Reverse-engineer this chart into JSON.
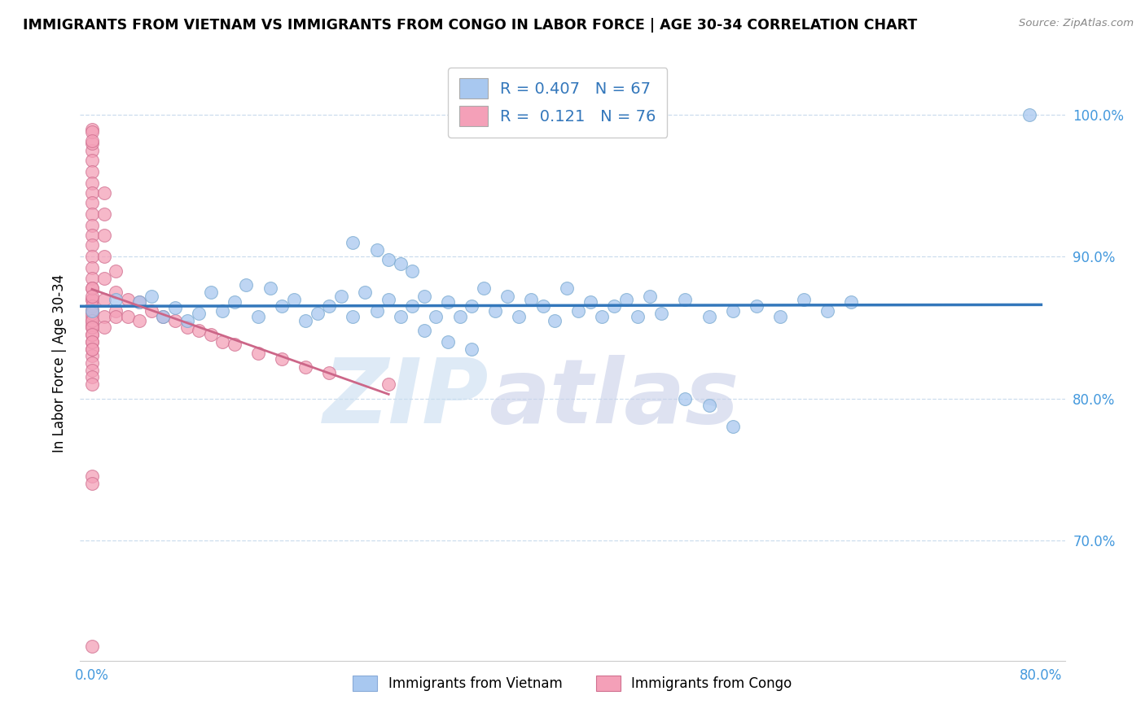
{
  "title": "IMMIGRANTS FROM VIETNAM VS IMMIGRANTS FROM CONGO IN LABOR FORCE | AGE 30-34 CORRELATION CHART",
  "source": "Source: ZipAtlas.com",
  "ylabel": "In Labor Force | Age 30-34",
  "bottom_legend": [
    "Immigrants from Vietnam",
    "Immigrants from Congo"
  ],
  "bottom_legend_colors": [
    "#a8c8f0",
    "#f4a0b8"
  ],
  "bottom_legend_edge_colors": [
    "#88aad8",
    "#d07090"
  ],
  "xlim": [
    -0.01,
    0.82
  ],
  "ylim": [
    0.615,
    1.035
  ],
  "ytick_vals": [
    0.7,
    0.8,
    0.9,
    1.0
  ],
  "ytick_labels": [
    "70.0%",
    "80.0%",
    "90.0%",
    "100.0%"
  ],
  "xtick_vals": [
    0.0,
    0.8
  ],
  "xtick_labels": [
    "0.0%",
    "80.0%"
  ],
  "tick_color": "#4499dd",
  "grid_color": "#ccddee",
  "vietnam_color": "#a8c8f0",
  "vietnam_edge": "#7aaad0",
  "congo_color": "#f4a0b8",
  "congo_edge": "#d07090",
  "vietnam_line_color": "#3377bb",
  "congo_line_color": "#cc6688",
  "legend_blue_color": "#a8c8f0",
  "legend_pink_color": "#f4a0b8",
  "legend_text_color": "#3377bb",
  "watermark_zip_color": "#c8ddf0",
  "watermark_atlas_color": "#c8d0e8",
  "vietnam_x": [
    0.0,
    0.02,
    0.04,
    0.05,
    0.06,
    0.07,
    0.08,
    0.09,
    0.1,
    0.11,
    0.12,
    0.13,
    0.14,
    0.15,
    0.16,
    0.17,
    0.18,
    0.19,
    0.2,
    0.21,
    0.22,
    0.23,
    0.24,
    0.25,
    0.26,
    0.27,
    0.28,
    0.29,
    0.3,
    0.31,
    0.32,
    0.33,
    0.34,
    0.35,
    0.36,
    0.37,
    0.38,
    0.39,
    0.4,
    0.41,
    0.42,
    0.43,
    0.44,
    0.45,
    0.46,
    0.47,
    0.48,
    0.5,
    0.52,
    0.54,
    0.56,
    0.58,
    0.6,
    0.62,
    0.64,
    0.3,
    0.32,
    0.28,
    0.5,
    0.52,
    0.54,
    0.79,
    0.25,
    0.27,
    0.22,
    0.24,
    0.26
  ],
  "vietnam_y": [
    0.862,
    0.87,
    0.868,
    0.872,
    0.858,
    0.864,
    0.855,
    0.86,
    0.875,
    0.862,
    0.868,
    0.88,
    0.858,
    0.878,
    0.865,
    0.87,
    0.855,
    0.86,
    0.865,
    0.872,
    0.858,
    0.875,
    0.862,
    0.87,
    0.858,
    0.865,
    0.872,
    0.858,
    0.868,
    0.858,
    0.865,
    0.878,
    0.862,
    0.872,
    0.858,
    0.87,
    0.865,
    0.855,
    0.878,
    0.862,
    0.868,
    0.858,
    0.865,
    0.87,
    0.858,
    0.872,
    0.86,
    0.87,
    0.858,
    0.862,
    0.865,
    0.858,
    0.87,
    0.862,
    0.868,
    0.84,
    0.835,
    0.848,
    0.8,
    0.795,
    0.78,
    1.0,
    0.898,
    0.89,
    0.91,
    0.905,
    0.895
  ],
  "congo_x": [
    0.0,
    0.0,
    0.0,
    0.0,
    0.0,
    0.0,
    0.0,
    0.0,
    0.0,
    0.0,
    0.0,
    0.0,
    0.0,
    0.0,
    0.0,
    0.0,
    0.0,
    0.0,
    0.0,
    0.0,
    0.0,
    0.0,
    0.0,
    0.0,
    0.0,
    0.0,
    0.0,
    0.0,
    0.0,
    0.0,
    0.01,
    0.01,
    0.01,
    0.01,
    0.01,
    0.01,
    0.01,
    0.01,
    0.02,
    0.02,
    0.02,
    0.02,
    0.03,
    0.03,
    0.04,
    0.04,
    0.05,
    0.06,
    0.07,
    0.08,
    0.09,
    0.1,
    0.11,
    0.12,
    0.14,
    0.16,
    0.18,
    0.2,
    0.25,
    0.0,
    0.0,
    0.0,
    0.0,
    0.0,
    0.0,
    0.0,
    0.0,
    0.0,
    0.0,
    0.0,
    0.0,
    0.0,
    0.0,
    0.0,
    0.0
  ],
  "congo_y": [
    0.975,
    0.968,
    0.96,
    0.952,
    0.945,
    0.938,
    0.93,
    0.922,
    0.915,
    0.908,
    0.9,
    0.892,
    0.885,
    0.878,
    0.87,
    0.862,
    0.855,
    0.85,
    0.845,
    0.84,
    0.835,
    0.83,
    0.825,
    0.82,
    0.815,
    0.81,
    0.852,
    0.858,
    0.862,
    0.87,
    0.945,
    0.93,
    0.915,
    0.9,
    0.885,
    0.87,
    0.858,
    0.85,
    0.89,
    0.875,
    0.862,
    0.858,
    0.87,
    0.858,
    0.868,
    0.855,
    0.862,
    0.858,
    0.855,
    0.85,
    0.848,
    0.845,
    0.84,
    0.838,
    0.832,
    0.828,
    0.822,
    0.818,
    0.81,
    0.98,
    0.99,
    0.988,
    0.982,
    0.878,
    0.865,
    0.872,
    0.86,
    0.855,
    0.85,
    0.845,
    0.84,
    0.835,
    0.745,
    0.74,
    0.625
  ]
}
